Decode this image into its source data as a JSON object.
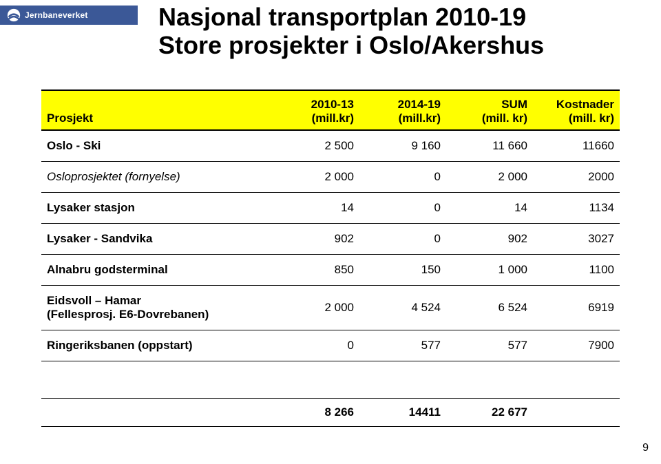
{
  "logo": {
    "text": "Jernbaneverket"
  },
  "title_line1": "Nasjonal transportplan 2010-19",
  "title_line2": "Store prosjekter i Oslo/Akershus",
  "headers": {
    "c0": "Prosjekt",
    "c1a": "2010-13",
    "c1b": "(mill.kr)",
    "c2a": "2014-19",
    "c2b": "(mill.kr)",
    "c3a": "SUM",
    "c3b": "(mill. kr)",
    "c4": "Kostnader (mill. kr)"
  },
  "rows": [
    {
      "name": "Oslo - Ski",
      "italic": false,
      "v1": "2 500",
      "v2": "9 160",
      "v3": "11 660",
      "v4": "11660"
    },
    {
      "name": "Osloprosjektet (fornyelse)",
      "italic": true,
      "v1": "2 000",
      "v2": "0",
      "v3": "2 000",
      "v4": "2000"
    },
    {
      "name": "Lysaker stasjon",
      "italic": false,
      "v1": "14",
      "v2": "0",
      "v3": "14",
      "v4": "1134"
    },
    {
      "name": "Lysaker - Sandvika",
      "italic": false,
      "v1": "902",
      "v2": "0",
      "v3": "902",
      "v4": "3027"
    },
    {
      "name": "Alnabru godsterminal",
      "italic": false,
      "v1": "850",
      "v2": "150",
      "v3": "1 000",
      "v4": "1100"
    },
    {
      "name": "Eidsvoll – Hamar\n(Fellesprosj. E6-Dovrebanen)",
      "italic": false,
      "v1": "2 000",
      "v2": "4 524",
      "v3": "6 524",
      "v4": "6919"
    },
    {
      "name": "Ringeriksbanen (oppstart)",
      "italic": false,
      "v1": "0",
      "v2": "577",
      "v3": "577",
      "v4": "7900"
    }
  ],
  "totals": {
    "v1": "8 266",
    "v2": "14411",
    "v3": "22 677",
    "v4": ""
  },
  "page_number": "9",
  "colors": {
    "logo_bg": "#3b5897",
    "header_bg": "#ffff00",
    "text": "#000000",
    "border": "#000000",
    "bg": "#ffffff"
  }
}
